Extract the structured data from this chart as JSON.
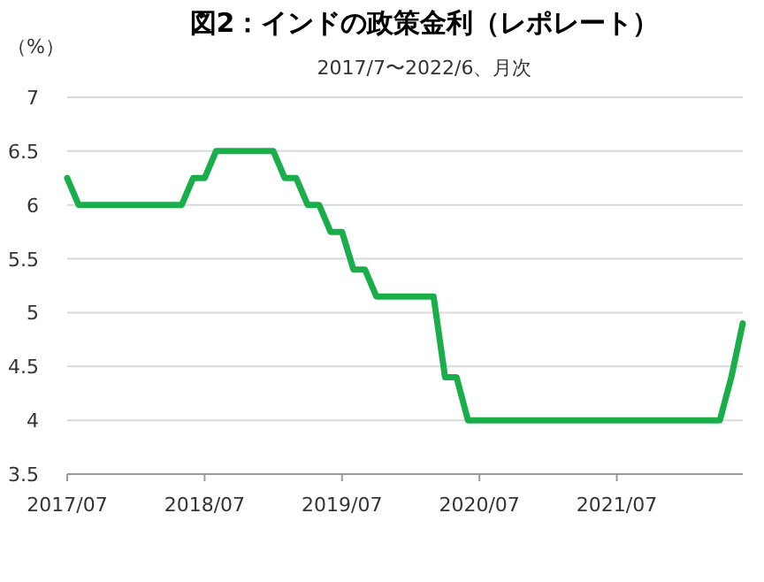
{
  "chart_data": {
    "type": "line",
    "title": "図2：インドの政策金利（レポレート）",
    "subtitle": "2017/7〜2022/6、月次",
    "ylabel": "（%）",
    "categories": [
      "2017/07",
      null,
      null,
      null,
      null,
      null,
      null,
      null,
      null,
      null,
      null,
      null,
      "2018/07",
      null,
      null,
      null,
      null,
      null,
      null,
      null,
      null,
      null,
      null,
      null,
      "2019/07",
      null,
      null,
      null,
      null,
      null,
      null,
      null,
      null,
      null,
      null,
      null,
      "2020/07",
      null,
      null,
      null,
      null,
      null,
      null,
      null,
      null,
      null,
      null,
      null,
      "2021/07",
      null,
      null,
      null,
      null,
      null,
      null,
      null,
      null,
      null,
      null,
      null
    ],
    "series": [
      {
        "color": "#1aae4b",
        "values": [
          6.25,
          6,
          6,
          6,
          6,
          6,
          6,
          6,
          6,
          6,
          6,
          6.25,
          6.25,
          6.5,
          6.5,
          6.5,
          6.5,
          6.5,
          6.5,
          6.25,
          6.25,
          6,
          6,
          5.75,
          5.75,
          5.4,
          5.4,
          5.15,
          5.15,
          5.15,
          5.15,
          5.15,
          5.15,
          4.4,
          4.4,
          4,
          4,
          4,
          4,
          4,
          4,
          4,
          4,
          4,
          4,
          4,
          4,
          4,
          4,
          4,
          4,
          4,
          4,
          4,
          4,
          4,
          4,
          4,
          4.4,
          4.9
        ]
      }
    ],
    "ylim": [
      3.5,
      7
    ],
    "yticks": [
      3.5,
      4,
      4.5,
      5,
      5.5,
      6,
      6.5,
      7
    ],
    "grid": "y",
    "marker": "none",
    "line_style": "solid"
  }
}
